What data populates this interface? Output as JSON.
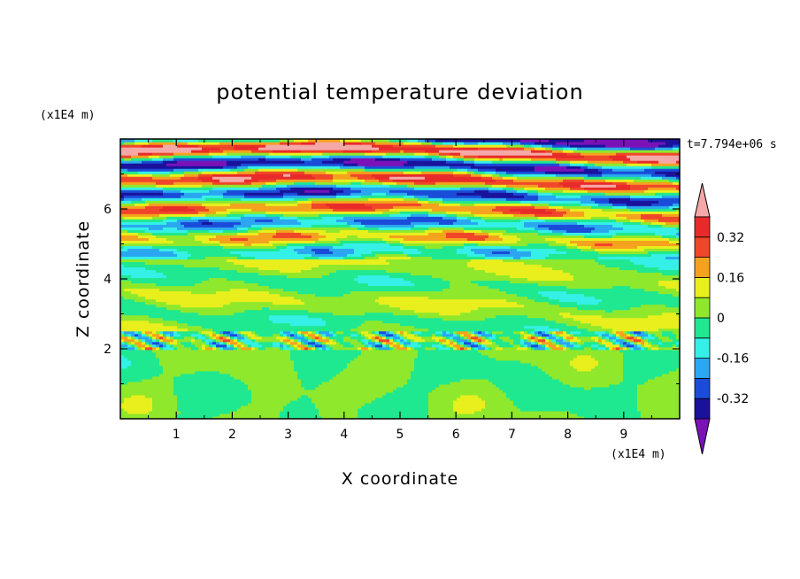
{
  "chart_data": {
    "type": "heatmap",
    "title": "potential temperature deviation",
    "xlabel": "X coordinate",
    "ylabel": "Z coordinate",
    "x_unit_label": "(x1E4 m)",
    "y_unit_label": "(x1E4 m)",
    "time_label": "t=7.794e+06 s",
    "xlim": [
      0,
      10
    ],
    "ylim": [
      0,
      8
    ],
    "x_ticks": [
      "1",
      "2",
      "3",
      "4",
      "5",
      "6",
      "7",
      "8",
      "9"
    ],
    "y_ticks": [
      "2",
      "4",
      "6"
    ],
    "colorbar": {
      "tick_labels": [
        "0.32",
        "0.16",
        "0",
        "-0.16",
        "-0.32"
      ],
      "tick_values": [
        0.32,
        0.16,
        0,
        -0.16,
        -0.32
      ],
      "levels": [
        -0.4,
        -0.32,
        -0.24,
        -0.16,
        -0.08,
        0,
        0.08,
        0.16,
        0.24,
        0.32,
        0.4
      ],
      "colors_low_to_high": [
        "#7a12b8",
        "#1a129c",
        "#1a4cd9",
        "#2aa7f0",
        "#35f0e6",
        "#1fe890",
        "#8fe82c",
        "#e8ef1c",
        "#f5a21e",
        "#f0462a",
        "#e82a2a",
        "#f5a8a8"
      ],
      "extend": "both"
    },
    "layers": [
      {
        "z": [
          0.0,
          2.0
        ],
        "description_level": 0.02
      },
      {
        "z": [
          2.0,
          4.5
        ],
        "description_level": 0.04
      },
      {
        "z": [
          4.5,
          8.0
        ],
        "description_level": 0.3
      }
    ]
  }
}
